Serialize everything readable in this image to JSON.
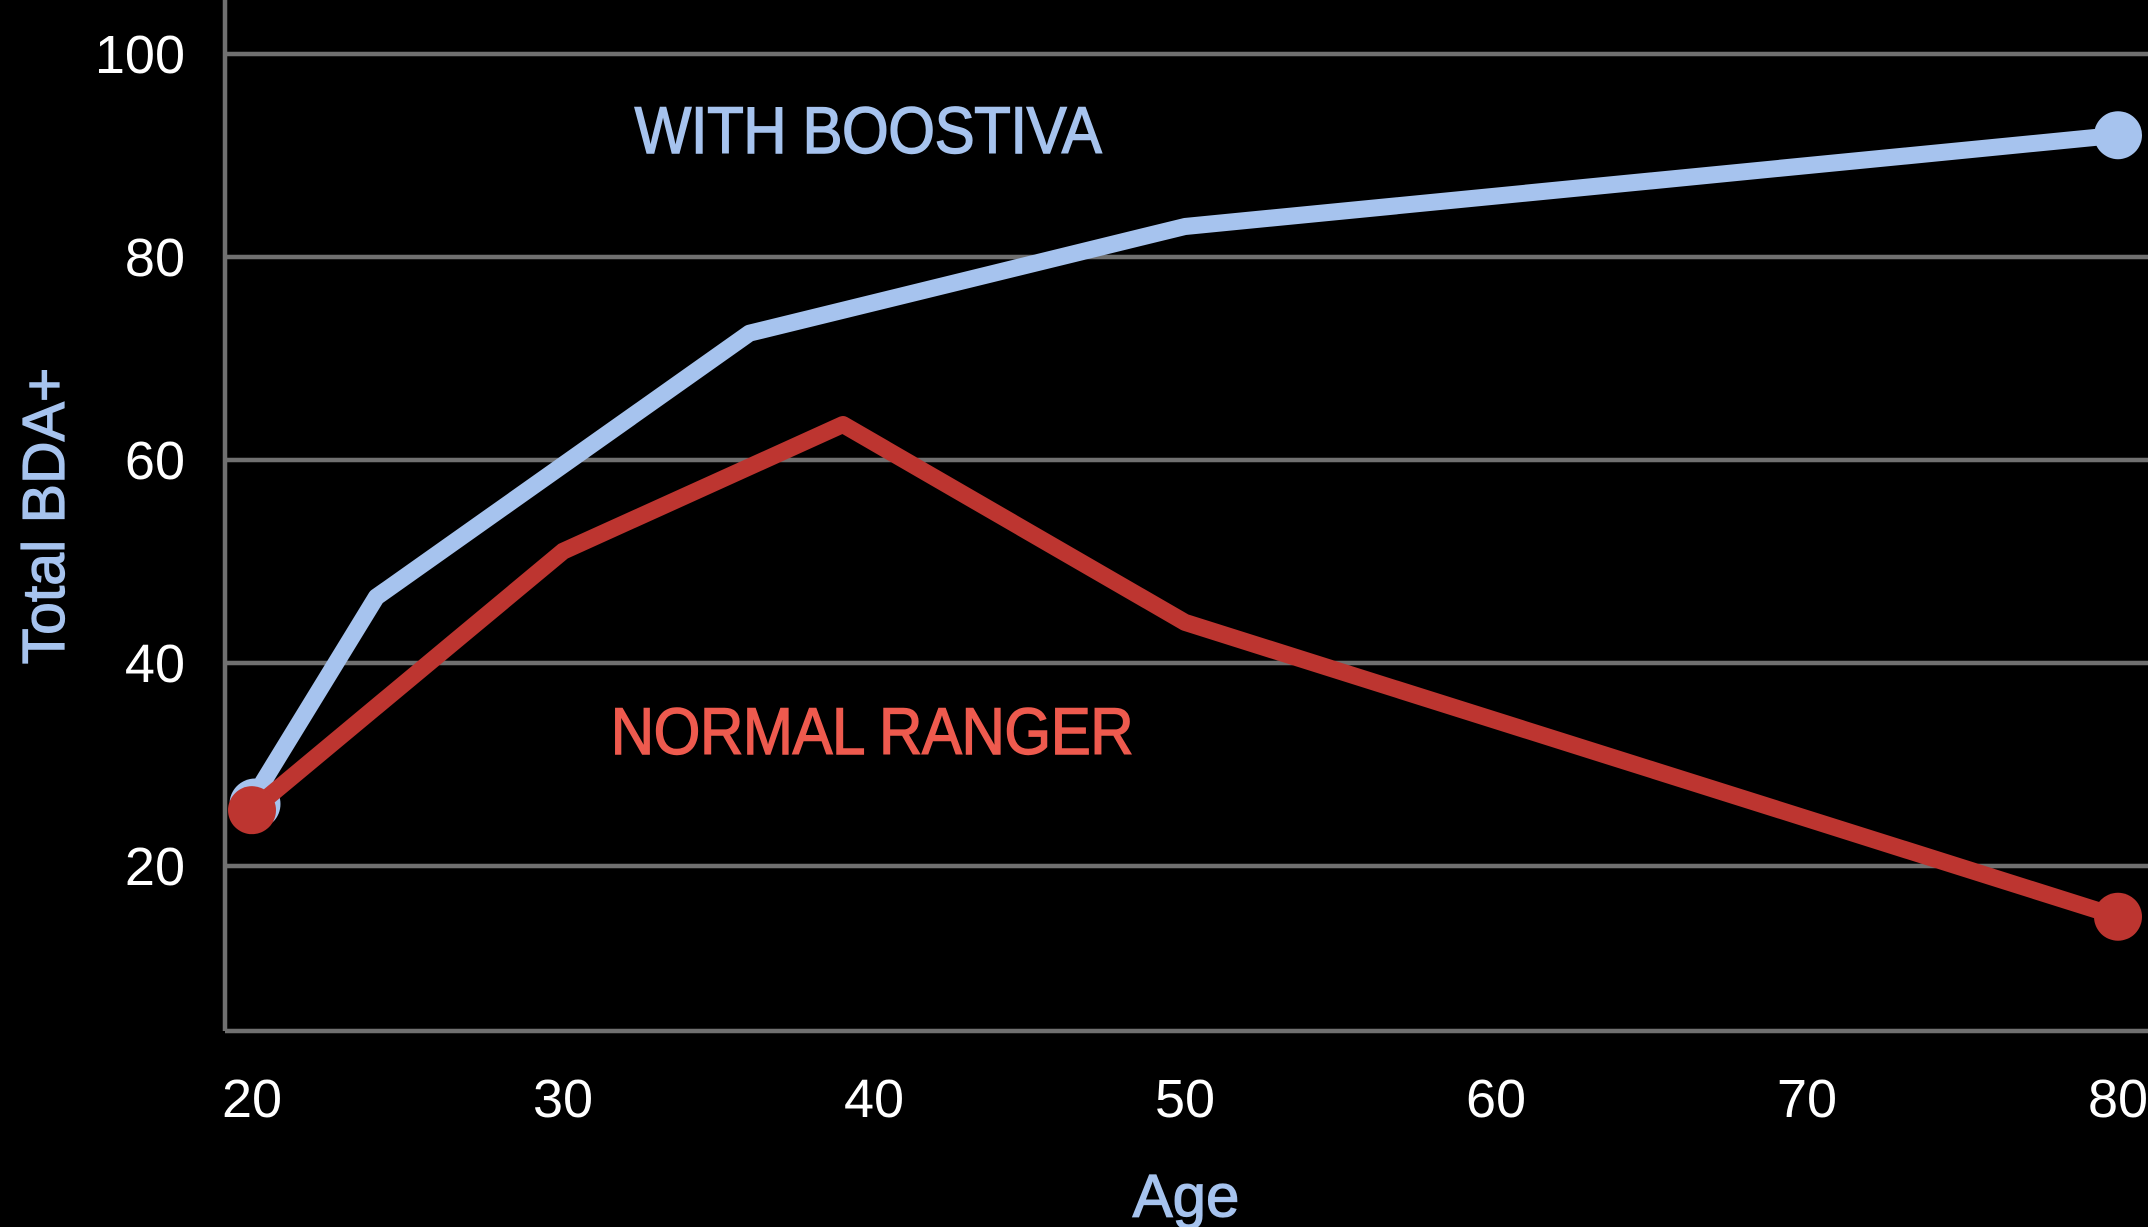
{
  "chart_data": {
    "type": "line",
    "xlabel": "Age",
    "ylabel": "Total BDA+",
    "x_ticks": [
      20,
      30,
      40,
      50,
      60,
      70,
      80
    ],
    "y_ticks": [
      20,
      40,
      60,
      80,
      100
    ],
    "xlim": [
      19.1,
      81.1
    ],
    "ylim": [
      4,
      105.3
    ],
    "grid": "horizontal",
    "background_color": "#000000",
    "axis_color": "#707070",
    "tick_label_color": "#ffffff",
    "axis_title_color": "#a6c3ee",
    "series": [
      {
        "name": "WITH BOOSTIVA",
        "line_color": "#a6c3ee",
        "label_color": "#a6c3ee",
        "points": [
          [
            20,
            26.5
          ],
          [
            24,
            46.5
          ],
          [
            36,
            72.5
          ],
          [
            50,
            83
          ],
          [
            80,
            92
          ]
        ],
        "markers": "endpoints"
      },
      {
        "name": "NORMAL RANGER",
        "line_color": "#bd3530",
        "label_color": "#ee5a4e",
        "points": [
          [
            20,
            25.5
          ],
          [
            30,
            51
          ],
          [
            39,
            63.5
          ],
          [
            50,
            44
          ],
          [
            80,
            15
          ]
        ],
        "markers": "endpoints"
      }
    ]
  }
}
